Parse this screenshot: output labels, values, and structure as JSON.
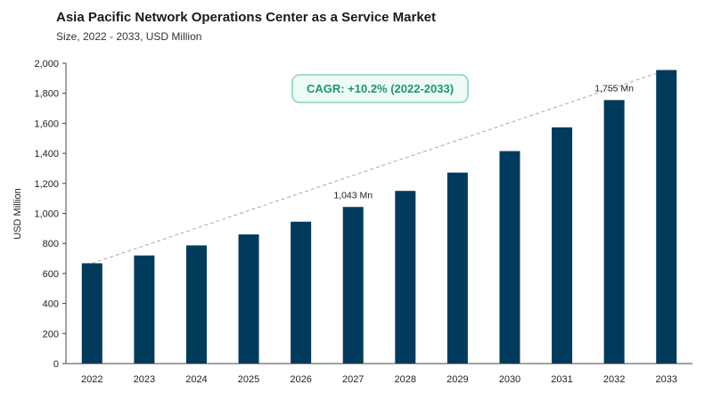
{
  "colors": {
    "bar": "#003b5c",
    "axis": "#444444",
    "trend": "#aaaaaa",
    "cagr_border": "#6fcfb0",
    "cagr_fill": "#eefaf5",
    "cagr_text": "#1e9670"
  },
  "chart_data": {
    "type": "bar",
    "title": "Asia Pacific Network Operations Center as a Service Market",
    "subtitle": "Size, 2022 - 2033, USD Million",
    "ylabel": "USD Million",
    "xlabel": "",
    "ylim": [
      0,
      2000
    ],
    "yticks": [
      0,
      200,
      400,
      600,
      800,
      1000,
      1200,
      1400,
      1600,
      1800,
      2000
    ],
    "ytick_labels": [
      "0",
      "200",
      "400",
      "600",
      "800",
      "1,000",
      "1,200",
      "1,400",
      "1,600",
      "1,800",
      "2,000"
    ],
    "categories": [
      "2022",
      "2023",
      "2024",
      "2025",
      "2026",
      "2027",
      "2028",
      "2029",
      "2030",
      "2031",
      "2032",
      "2033"
    ],
    "values": [
      668,
      720,
      787,
      860,
      945,
      1043,
      1150,
      1272,
      1415,
      1573,
      1755,
      1955
    ],
    "grid": false,
    "trend_line": true,
    "annotations": [
      {
        "category": "2027",
        "text": "1,043 Mn"
      },
      {
        "category": "2032",
        "text": "1,755 Mn"
      }
    ],
    "cagr_label": "CAGR: +10.2% (2022-2033)"
  }
}
